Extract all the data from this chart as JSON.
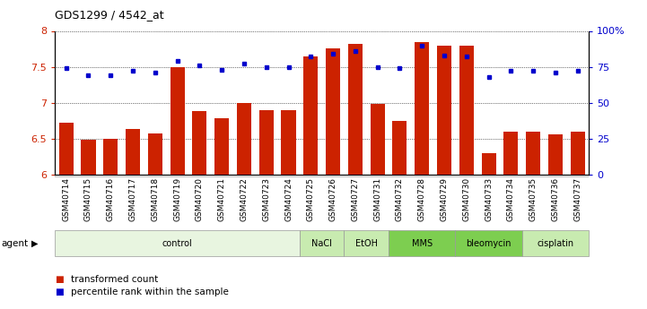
{
  "title": "GDS1299 / 4542_at",
  "samples": [
    "GSM40714",
    "GSM40715",
    "GSM40716",
    "GSM40717",
    "GSM40718",
    "GSM40719",
    "GSM40720",
    "GSM40721",
    "GSM40722",
    "GSM40723",
    "GSM40724",
    "GSM40725",
    "GSM40726",
    "GSM40727",
    "GSM40731",
    "GSM40732",
    "GSM40728",
    "GSM40729",
    "GSM40730",
    "GSM40733",
    "GSM40734",
    "GSM40735",
    "GSM40736",
    "GSM40737"
  ],
  "bar_values": [
    6.72,
    6.49,
    6.5,
    6.64,
    6.57,
    7.5,
    6.88,
    6.78,
    7.0,
    6.9,
    6.9,
    7.65,
    7.76,
    7.82,
    6.99,
    6.75,
    7.85,
    7.8,
    7.8,
    6.3,
    6.6,
    6.6,
    6.56,
    6.6
  ],
  "dot_values": [
    74,
    69,
    69,
    72,
    71,
    79,
    76,
    73,
    77,
    75,
    75,
    82,
    84,
    86,
    75,
    74,
    90,
    83,
    82,
    68,
    72,
    72,
    71,
    72
  ],
  "bar_color": "#cc2200",
  "dot_color": "#0000cc",
  "ylim_left": [
    6.0,
    8.0
  ],
  "ylim_right": [
    0,
    100
  ],
  "yticks_left": [
    6.0,
    6.5,
    7.0,
    7.5,
    8.0
  ],
  "ytick_labels_left": [
    "6",
    "6.5",
    "7",
    "7.5",
    "8"
  ],
  "yticks_right": [
    0,
    25,
    50,
    75,
    100
  ],
  "ytick_labels_right": [
    "0",
    "25",
    "50",
    "75",
    "100%"
  ],
  "groups": [
    {
      "label": "control",
      "start": 0,
      "end": 11,
      "color": "#e8f5e0"
    },
    {
      "label": "NaCl",
      "start": 11,
      "end": 13,
      "color": "#c8ebb0"
    },
    {
      "label": "EtOH",
      "start": 13,
      "end": 15,
      "color": "#c8ebb0"
    },
    {
      "label": "MMS",
      "start": 15,
      "end": 18,
      "color": "#7dce50"
    },
    {
      "label": "bleomycin",
      "start": 18,
      "end": 21,
      "color": "#7dce50"
    },
    {
      "label": "cisplatin",
      "start": 21,
      "end": 24,
      "color": "#c8ebb0"
    }
  ],
  "legend_bar_label": "transformed count",
  "legend_dot_label": "percentile rank within the sample",
  "agent_label": "agent"
}
